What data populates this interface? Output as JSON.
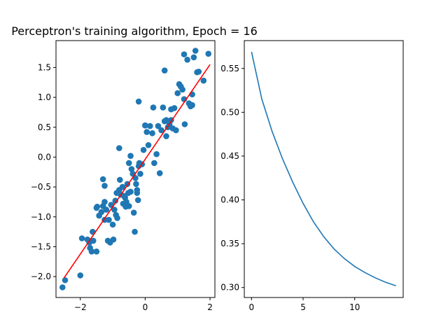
{
  "chart_data": [
    {
      "type": "scatter",
      "title": "Perceptron's training algorithm, Epoch = 16",
      "xlabel": "",
      "ylabel": "",
      "xlim": [
        -2.75,
        2.15
      ],
      "ylim": [
        -2.35,
        1.95
      ],
      "xticks": [
        -2,
        0,
        2
      ],
      "xtick_labels": [
        "−2",
        "0",
        "2"
      ],
      "yticks": [
        -2.0,
        -1.5,
        -1.0,
        -0.5,
        0.0,
        0.5,
        1.0,
        1.5
      ],
      "ytick_labels": [
        "−2.0",
        "−1.5",
        "−1.0",
        "−0.5",
        "0.0",
        "0.5",
        "1.0",
        "1.5"
      ],
      "grid": false,
      "point_color": "#1f77b4",
      "line_color": "#ff0000",
      "fit_line": {
        "x": [
          -2.5,
          2.0
        ],
        "y": [
          -2.02,
          1.55
        ]
      },
      "points": [
        [
          -2.55,
          -2.18
        ],
        [
          -2.47,
          -2.06
        ],
        [
          -2.0,
          -1.98
        ],
        [
          -1.95,
          -1.36
        ],
        [
          -1.78,
          -1.38
        ],
        [
          -1.72,
          -1.43
        ],
        [
          -1.7,
          -1.52
        ],
        [
          -1.65,
          -1.58
        ],
        [
          -1.6,
          -1.4
        ],
        [
          -1.62,
          -1.25
        ],
        [
          -1.5,
          -1.58
        ],
        [
          -1.48,
          -0.83
        ],
        [
          -1.42,
          -0.98
        ],
        [
          -1.35,
          -0.92
        ],
        [
          -1.3,
          -0.82
        ],
        [
          -1.25,
          -0.75
        ],
        [
          -1.25,
          -1.05
        ],
        [
          -1.2,
          -0.88
        ],
        [
          -1.15,
          -1.4
        ],
        [
          -1.12,
          -1.05
        ],
        [
          -1.08,
          -1.43
        ],
        [
          -1.05,
          -0.8
        ],
        [
          -1.0,
          -1.13
        ],
        [
          -0.98,
          -1.38
        ],
        [
          -0.95,
          -0.88
        ],
        [
          -0.92,
          -0.73
        ],
        [
          -0.9,
          -0.97
        ],
        [
          -0.88,
          -0.6
        ],
        [
          -0.86,
          -1.02
        ],
        [
          -0.8,
          -0.55
        ],
        [
          -0.78,
          -0.38
        ],
        [
          -0.75,
          -0.63
        ],
        [
          -0.7,
          -0.5
        ],
        [
          -0.68,
          -0.78
        ],
        [
          -0.65,
          -0.65
        ],
        [
          -0.62,
          -0.68
        ],
        [
          -0.6,
          -0.83
        ],
        [
          -0.58,
          -0.75
        ],
        [
          -0.55,
          -0.45
        ],
        [
          -0.52,
          -0.6
        ],
        [
          -0.5,
          -0.82
        ],
        [
          -0.45,
          -0.58
        ],
        [
          -0.42,
          -0.2
        ],
        [
          -0.38,
          -0.28
        ],
        [
          -0.35,
          -0.93
        ],
        [
          -0.32,
          -1.25
        ],
        [
          -0.3,
          -0.35
        ],
        [
          -0.28,
          -0.45
        ],
        [
          -0.25,
          -0.6
        ],
        [
          -0.22,
          -0.72
        ],
        [
          -0.2,
          -0.15
        ],
        [
          -0.18,
          -0.1
        ],
        [
          -0.15,
          -0.28
        ],
        [
          -0.1,
          -0.12
        ],
        [
          -0.05,
          0.12
        ],
        [
          0.0,
          0.53
        ],
        [
          0.05,
          0.42
        ],
        [
          0.1,
          0.2
        ],
        [
          0.15,
          0.52
        ],
        [
          0.22,
          0.4
        ],
        [
          0.25,
          0.83
        ],
        [
          0.28,
          -0.1
        ],
        [
          0.35,
          0.05
        ],
        [
          0.4,
          0.52
        ],
        [
          0.45,
          -0.27
        ],
        [
          0.5,
          0.45
        ],
        [
          0.55,
          0.83
        ],
        [
          0.6,
          0.6
        ],
        [
          0.65,
          0.62
        ],
        [
          0.7,
          0.5
        ],
        [
          0.75,
          0.55
        ],
        [
          0.8,
          0.62
        ],
        [
          0.85,
          0.48
        ],
        [
          0.9,
          0.82
        ],
        [
          0.95,
          0.45
        ],
        [
          1.0,
          1.07
        ],
        [
          1.05,
          1.22
        ],
        [
          1.1,
          1.18
        ],
        [
          1.15,
          1.13
        ],
        [
          1.2,
          0.97
        ],
        [
          1.22,
          0.55
        ],
        [
          1.3,
          1.63
        ],
        [
          1.35,
          0.9
        ],
        [
          1.4,
          0.85
        ],
        [
          1.45,
          1.05
        ],
        [
          1.5,
          1.67
        ],
        [
          1.55,
          1.78
        ],
        [
          1.6,
          1.42
        ],
        [
          1.65,
          1.43
        ],
        [
          1.8,
          1.28
        ],
        [
          1.95,
          1.73
        ],
        [
          -1.5,
          -0.85
        ],
        [
          -1.3,
          -0.37
        ],
        [
          -1.25,
          -0.48
        ],
        [
          -0.8,
          0.15
        ],
        [
          -0.5,
          -0.1
        ],
        [
          -0.45,
          0.02
        ],
        [
          -0.2,
          0.93
        ],
        [
          0.0,
          0.53
        ],
        [
          0.6,
          1.45
        ],
        [
          0.8,
          0.8
        ],
        [
          1.2,
          1.72
        ],
        [
          -0.25,
          -0.55
        ],
        [
          0.65,
          0.35
        ],
        [
          1.45,
          0.87
        ]
      ]
    },
    {
      "type": "line",
      "title": "",
      "xlabel": "",
      "ylabel": "",
      "xlim": [
        -0.7,
        14.7
      ],
      "ylim": [
        0.2886,
        0.5818
      ],
      "xticks": [
        0,
        5,
        10
      ],
      "xtick_labels": [
        "0",
        "5",
        "10"
      ],
      "yticks": [
        0.3,
        0.35,
        0.4,
        0.45,
        0.5,
        0.55
      ],
      "ytick_labels": [
        "0.30",
        "0.35",
        "0.40",
        "0.45",
        "0.50",
        "0.55"
      ],
      "grid": false,
      "line_color": "#1f77b4",
      "x": [
        0,
        1,
        2,
        3,
        4,
        5,
        6,
        7,
        8,
        9,
        10,
        11,
        12,
        13,
        14
      ],
      "y": [
        0.569,
        0.515,
        0.478,
        0.447,
        0.42,
        0.396,
        0.375,
        0.358,
        0.344,
        0.333,
        0.324,
        0.317,
        0.311,
        0.306,
        0.302
      ]
    }
  ]
}
